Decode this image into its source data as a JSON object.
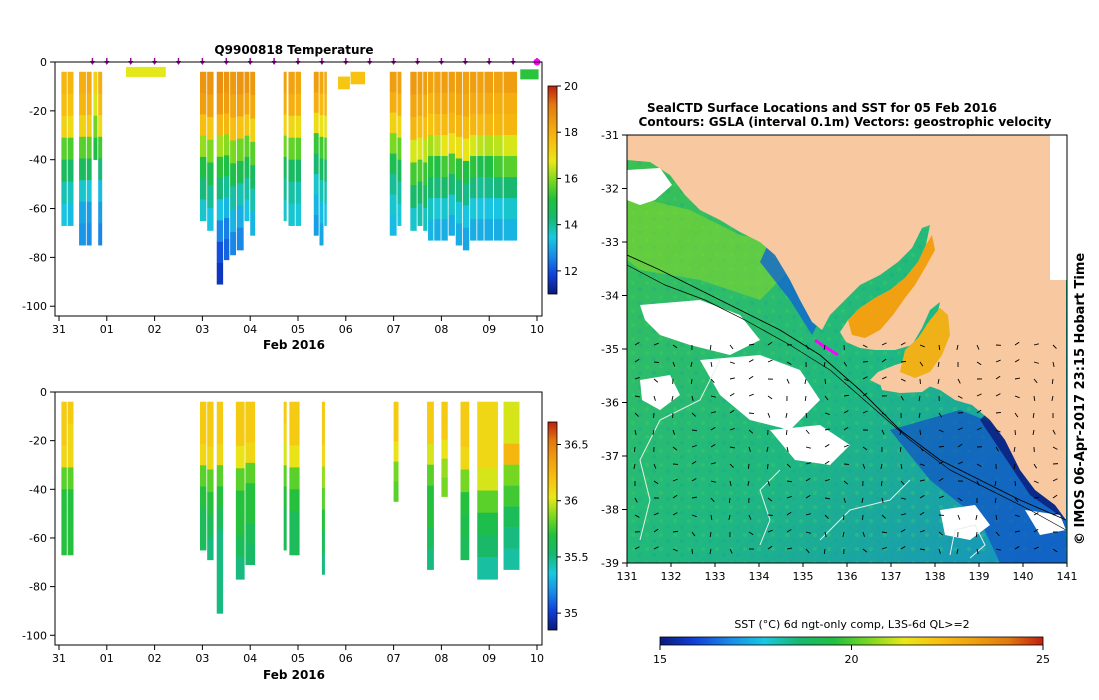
{
  "figure": {
    "top_panel": {
      "title": "Q9900818  Temperature",
      "xlabel": "Feb 2016",
      "x_ticks": [
        "31",
        "01",
        "02",
        "03",
        "04",
        "05",
        "06",
        "07",
        "08",
        "09",
        "10"
      ],
      "y_ticks": [
        "0",
        "-20",
        "-40",
        "-60",
        "-80",
        "-100"
      ],
      "ylim": [
        -104,
        0
      ],
      "colorbar": {
        "ticks": [
          "20",
          "18",
          "16",
          "14",
          "12"
        ],
        "range": [
          11,
          20
        ],
        "colors": [
          "#0a1a7a",
          "#1040d8",
          "#1a8ae8",
          "#18c8e0",
          "#18b870",
          "#20c040",
          "#7ad820",
          "#e8e818",
          "#f8c010",
          "#f0a010",
          "#e07a10",
          "#c02010"
        ]
      }
    },
    "bottom_panel": {
      "xlabel": "Feb 2016",
      "x_ticks": [
        "31",
        "01",
        "02",
        "03",
        "04",
        "05",
        "06",
        "07",
        "08",
        "09",
        "10"
      ],
      "y_ticks": [
        "0",
        "-20",
        "-40",
        "-60",
        "-80",
        "-100"
      ],
      "ylim": [
        -104,
        0
      ],
      "colorbar": {
        "ticks": [
          "36.5",
          "36",
          "35.5",
          "35"
        ],
        "range": [
          34.85,
          36.7
        ],
        "colors": [
          "#0a1a7a",
          "#1040d8",
          "#1a8ae8",
          "#18c8e0",
          "#18b870",
          "#20c040",
          "#7ad820",
          "#e8e818",
          "#f8c010",
          "#f0a010",
          "#e07a10",
          "#c02010"
        ]
      }
    },
    "map": {
      "title_line1": "SealCTD Surface Locations and SST for 05 Feb 2016",
      "title_line2": "Contours: GSLA (interval 0.1m) Vectors: geostrophic velocity",
      "x_ticks": [
        "131",
        "132",
        "133",
        "134",
        "135",
        "136",
        "137",
        "138",
        "139",
        "140",
        "141"
      ],
      "y_ticks": [
        "-31",
        "-32",
        "-33",
        "-34",
        "-35",
        "-36",
        "-37",
        "-38",
        "-39"
      ],
      "side_label": "© IMOS 06-Apr-2017 23:15 Hobart Time",
      "colorbar_title": "SST (°C) 6d ngt-only comp, L3S-6d QL>=2",
      "colorbar_ticks": [
        "15",
        "20",
        "25"
      ],
      "colorbar_range": [
        15,
        25
      ],
      "colors": [
        "#0a1a7a",
        "#1040d8",
        "#1a8ae8",
        "#18c8e0",
        "#18b870",
        "#20c040",
        "#7ad820",
        "#e8e818",
        "#f8c010",
        "#f0a010",
        "#e07a10",
        "#c02010"
      ],
      "land_color": "#f8c8a0",
      "track_color": "#ff00ff"
    }
  },
  "chart_data": [
    {
      "type": "heatmap",
      "title": "Q9900818  Temperature",
      "xlabel": "Feb 2016",
      "ylabel": "",
      "x_axis_days": [
        "31",
        "01",
        "02",
        "03",
        "04",
        "05",
        "06",
        "07",
        "08",
        "09",
        "10"
      ],
      "ylim": [
        -104,
        0
      ],
      "value_range": [
        11,
        20
      ],
      "profile_days": [
        0.7,
        1.0,
        1.5,
        2.0,
        2.5,
        3.0,
        3.5,
        4.0,
        4.5,
        5.0,
        5.5,
        6.0,
        6.5,
        7.0,
        7.5,
        8.0,
        8.5,
        9.0,
        9.5,
        10.0
      ],
      "profiles": [
        {
          "t_start": 0.05,
          "t_end": 0.18,
          "max_depth": 67,
          "values": [
            17.8,
            17.6,
            17.2,
            15.6,
            14.6,
            13.8,
            13.4
          ]
        },
        {
          "t_start": 0.18,
          "t_end": 0.32,
          "max_depth": 67,
          "values": [
            17.8,
            17.5,
            17.0,
            15.5,
            14.4,
            13.7,
            13.3
          ]
        },
        {
          "t_start": 0.42,
          "t_end": 0.58,
          "max_depth": 75,
          "values": [
            18.0,
            17.8,
            17.2,
            15.6,
            14.6,
            13.6,
            13.0,
            12.8
          ]
        },
        {
          "t_start": 0.58,
          "t_end": 0.7,
          "max_depth": 75,
          "values": [
            18.1,
            17.9,
            17.3,
            15.6,
            14.5,
            13.5,
            12.9,
            12.7
          ]
        },
        {
          "t_start": 0.72,
          "t_end": 0.82,
          "max_depth": 40,
          "values": [
            17.2,
            16.6,
            15.8,
            15.0
          ]
        },
        {
          "t_start": 0.82,
          "t_end": 0.92,
          "max_depth": 75,
          "values": [
            18.0,
            17.7,
            17.0,
            15.4,
            14.2,
            13.3,
            12.9,
            12.6
          ]
        },
        {
          "t_start": 1.4,
          "t_end": 2.25,
          "max_depth": 6,
          "values": [
            16.7
          ]
        },
        {
          "t_start": 2.95,
          "t_end": 3.1,
          "max_depth": 65,
          "values": [
            18.6,
            18.4,
            17.6,
            16.1,
            15.0,
            14.2,
            13.6
          ]
        },
        {
          "t_start": 3.1,
          "t_end": 3.25,
          "max_depth": 69,
          "values": [
            18.6,
            18.3,
            17.4,
            15.9,
            14.8,
            14.0,
            13.4
          ]
        },
        {
          "t_start": 3.3,
          "t_end": 3.45,
          "max_depth": 91,
          "values": [
            18.7,
            18.5,
            17.8,
            16.2,
            15.2,
            14.2,
            13.4,
            12.6,
            12.0,
            11.6
          ]
        },
        {
          "t_start": 3.45,
          "t_end": 3.58,
          "max_depth": 81,
          "values": [
            18.6,
            18.4,
            17.8,
            16.0,
            15.0,
            14.0,
            13.2,
            12.5,
            12.2
          ]
        },
        {
          "t_start": 3.58,
          "t_end": 3.72,
          "max_depth": 79,
          "values": [
            18.5,
            18.2,
            17.6,
            15.9,
            14.9,
            13.9,
            13.2,
            12.6
          ]
        },
        {
          "t_start": 3.72,
          "t_end": 3.88,
          "max_depth": 77,
          "values": [
            18.6,
            18.3,
            17.5,
            15.8,
            14.8,
            13.8,
            13.1,
            12.6
          ]
        },
        {
          "t_start": 3.88,
          "t_end": 4.0,
          "max_depth": 65,
          "values": [
            18.6,
            18.2,
            17.4,
            15.7,
            14.7,
            13.9,
            13.4
          ]
        },
        {
          "t_start": 4.0,
          "t_end": 4.12,
          "max_depth": 71,
          "values": [
            18.5,
            18.1,
            17.2,
            15.6,
            14.5,
            13.8,
            13.2
          ]
        },
        {
          "t_start": 4.7,
          "t_end": 4.78,
          "max_depth": 65,
          "values": [
            18.3,
            18.0,
            17.2,
            15.8,
            14.6,
            14.0,
            13.6
          ]
        },
        {
          "t_start": 4.8,
          "t_end": 4.95,
          "max_depth": 67,
          "values": [
            18.3,
            18.0,
            17.1,
            15.7,
            14.5,
            13.9,
            13.6
          ]
        },
        {
          "t_start": 4.95,
          "t_end": 5.08,
          "max_depth": 67,
          "values": [
            18.2,
            17.9,
            17.0,
            15.6,
            14.4,
            13.8,
            13.5
          ]
        },
        {
          "t_start": 5.33,
          "t_end": 5.45,
          "max_depth": 71,
          "values": [
            18.4,
            18.0,
            17.0,
            15.3,
            14.3,
            13.6,
            13.2,
            12.9
          ]
        },
        {
          "t_start": 5.45,
          "t_end": 5.55,
          "max_depth": 75,
          "values": [
            18.2,
            17.7,
            16.8,
            15.4,
            14.5,
            13.8,
            13.3,
            13.0
          ]
        },
        {
          "t_start": 5.55,
          "t_end": 5.62,
          "max_depth": 67,
          "values": [
            18.1,
            17.8,
            16.9,
            15.5,
            14.4,
            13.8,
            13.4
          ]
        },
        {
          "t_start": 5.84,
          "t_end": 6.1,
          "max_depth": 11,
          "values": [
            17.6,
            17.4
          ]
        },
        {
          "t_start": 6.1,
          "t_end": 6.42,
          "max_depth": 9,
          "values": [
            17.5
          ]
        },
        {
          "t_start": 6.92,
          "t_end": 7.08,
          "max_depth": 71,
          "values": [
            18.4,
            18.0,
            17.2,
            15.9,
            14.8,
            14.0,
            13.6,
            13.3
          ]
        },
        {
          "t_start": 7.08,
          "t_end": 7.18,
          "max_depth": 67,
          "values": [
            18.3,
            17.9,
            17.1,
            15.7,
            14.6,
            13.9,
            13.5
          ]
        },
        {
          "t_start": 7.35,
          "t_end": 7.5,
          "max_depth": 69,
          "values": [
            18.5,
            18.2,
            17.8,
            16.6,
            15.4,
            14.4,
            13.6
          ]
        },
        {
          "t_start": 7.5,
          "t_end": 7.62,
          "max_depth": 67,
          "values": [
            18.4,
            18.1,
            17.6,
            16.6,
            15.5,
            14.5,
            13.8
          ]
        },
        {
          "t_start": 7.62,
          "t_end": 7.72,
          "max_depth": 69,
          "values": [
            18.4,
            18.0,
            17.6,
            16.4,
            15.3,
            14.5,
            13.7
          ]
        },
        {
          "t_start": 7.72,
          "t_end": 7.85,
          "max_depth": 73,
          "values": [
            18.3,
            17.9,
            17.5,
            16.2,
            15.2,
            14.3,
            13.7,
            13.2
          ]
        },
        {
          "t_start": 7.85,
          "t_end": 8.0,
          "max_depth": 73,
          "values": [
            18.3,
            18.1,
            17.7,
            16.4,
            15.0,
            14.2,
            13.5,
            13.1
          ]
        },
        {
          "t_start": 8.0,
          "t_end": 8.15,
          "max_depth": 73,
          "values": [
            18.4,
            18.1,
            17.7,
            16.8,
            15.4,
            14.4,
            13.6,
            13.1
          ]
        },
        {
          "t_start": 8.15,
          "t_end": 8.3,
          "max_depth": 71,
          "values": [
            18.4,
            18.1,
            17.8,
            16.9,
            15.4,
            14.3,
            13.6,
            13.1
          ]
        },
        {
          "t_start": 8.3,
          "t_end": 8.45,
          "max_depth": 75,
          "values": [
            18.4,
            18.2,
            17.8,
            16.9,
            15.2,
            14.2,
            13.5,
            13.1
          ]
        },
        {
          "t_start": 8.45,
          "t_end": 8.6,
          "max_depth": 77,
          "values": [
            18.3,
            18.1,
            17.7,
            16.8,
            15.0,
            14.1,
            13.4,
            13.0
          ]
        },
        {
          "t_start": 8.6,
          "t_end": 8.75,
          "max_depth": 73,
          "values": [
            18.4,
            18.1,
            17.8,
            16.6,
            15.2,
            14.2,
            13.5,
            13.1
          ]
        },
        {
          "t_start": 8.75,
          "t_end": 8.9,
          "max_depth": 73,
          "values": [
            18.3,
            18.1,
            17.7,
            16.4,
            14.8,
            14.0,
            13.4,
            13.1
          ]
        },
        {
          "t_start": 8.9,
          "t_end": 9.1,
          "max_depth": 73,
          "values": [
            18.4,
            18.1,
            17.8,
            16.3,
            15.0,
            14.1,
            13.4,
            13.1
          ]
        },
        {
          "t_start": 9.1,
          "t_end": 9.3,
          "max_depth": 73,
          "values": [
            18.3,
            18.0,
            17.8,
            16.4,
            15.4,
            14.2,
            13.4,
            13.1
          ]
        },
        {
          "t_start": 9.3,
          "t_end": 9.6,
          "max_depth": 73,
          "values": [
            18.4,
            18.0,
            17.8,
            16.6,
            15.6,
            14.3,
            13.6,
            13.2
          ]
        },
        {
          "t_start": 9.65,
          "t_end": 10.05,
          "max_depth": 7,
          "values": [
            15.2
          ]
        }
      ]
    },
    {
      "type": "heatmap",
      "title": "",
      "xlabel": "Feb 2016",
      "ylabel": "",
      "x_axis_days": [
        "31",
        "01",
        "02",
        "03",
        "04",
        "05",
        "06",
        "07",
        "08",
        "09",
        "10"
      ],
      "ylim": [
        -104,
        0
      ],
      "value_range": [
        34.85,
        36.7
      ],
      "profiles": [
        {
          "t_start": 0.05,
          "t_end": 0.18,
          "max_depth": 67,
          "values": [
            36.15,
            36.15,
            36.1,
            35.8,
            35.7,
            35.7,
            35.7
          ]
        },
        {
          "t_start": 0.18,
          "t_end": 0.32,
          "max_depth": 67,
          "values": [
            36.15,
            36.1,
            36.1,
            35.8,
            35.7,
            35.7,
            35.7
          ]
        },
        {
          "t_start": 2.95,
          "t_end": 3.1,
          "max_depth": 65,
          "values": [
            36.15,
            36.15,
            36.1,
            35.8,
            35.7,
            35.6,
            35.6
          ]
        },
        {
          "t_start": 3.1,
          "t_end": 3.25,
          "max_depth": 69,
          "values": [
            36.15,
            36.15,
            36.1,
            35.8,
            35.7,
            35.6,
            35.5
          ]
        },
        {
          "t_start": 3.3,
          "t_end": 3.45,
          "max_depth": 91,
          "values": [
            36.15,
            36.15,
            36.1,
            35.8,
            35.7,
            35.6,
            35.5,
            35.5,
            35.5,
            35.5
          ]
        },
        {
          "t_start": 3.7,
          "t_end": 3.9,
          "max_depth": 77,
          "values": [
            36.15,
            36.15,
            36.05,
            35.8,
            35.7,
            35.7,
            35.6,
            35.5
          ]
        },
        {
          "t_start": 3.9,
          "t_end": 4.12,
          "max_depth": 71,
          "values": [
            36.15,
            36.15,
            36.1,
            35.8,
            35.7,
            35.7,
            35.6,
            35.55
          ]
        },
        {
          "t_start": 4.7,
          "t_end": 4.78,
          "max_depth": 65,
          "values": [
            36.15,
            36.1,
            36.0,
            35.8,
            35.7,
            35.6,
            35.6
          ]
        },
        {
          "t_start": 4.82,
          "t_end": 5.05,
          "max_depth": 67,
          "values": [
            36.15,
            36.15,
            36.05,
            35.8,
            35.7,
            35.6,
            35.6
          ]
        },
        {
          "t_start": 5.5,
          "t_end": 5.58,
          "max_depth": 75,
          "values": [
            36.15,
            36.15,
            36.1,
            35.9,
            35.8,
            35.7,
            35.6,
            35.5
          ]
        },
        {
          "t_start": 7.0,
          "t_end": 7.12,
          "max_depth": 45,
          "values": [
            36.15,
            36.15,
            36.05,
            35.85,
            35.8
          ]
        },
        {
          "t_start": 7.7,
          "t_end": 7.86,
          "max_depth": 73,
          "values": [
            36.15,
            36.15,
            36.0,
            35.8,
            35.7,
            35.7,
            35.6,
            35.5
          ]
        },
        {
          "t_start": 8.0,
          "t_end": 8.15,
          "max_depth": 43,
          "values": [
            36.15,
            36.15,
            36.05,
            35.9,
            35.85
          ]
        },
        {
          "t_start": 8.4,
          "t_end": 8.6,
          "max_depth": 69,
          "values": [
            36.15,
            36.15,
            36.1,
            35.85,
            35.7,
            35.65,
            35.6
          ]
        },
        {
          "t_start": 8.75,
          "t_end": 9.2,
          "max_depth": 77,
          "values": [
            36.1,
            36.1,
            36.1,
            36.0,
            35.8,
            35.65,
            35.55,
            35.45
          ]
        },
        {
          "t_start": 9.3,
          "t_end": 9.65,
          "max_depth": 73,
          "values": [
            36.0,
            36.0,
            36.25,
            35.85,
            35.75,
            35.6,
            35.5,
            35.45
          ]
        }
      ]
    }
  ]
}
